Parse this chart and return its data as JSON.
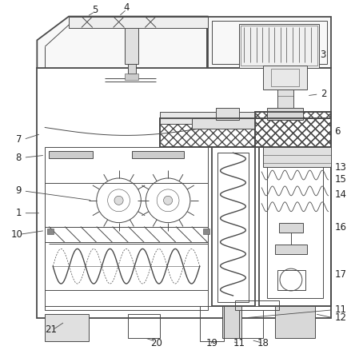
{
  "bg_color": "#ffffff",
  "line_color": "#4a4a4a",
  "label_color": "#222222",
  "lw_main": 1.3,
  "lw_thin": 0.7,
  "lw_hair": 0.4,
  "fig_width": 4.44,
  "fig_height": 4.38,
  "dpi": 100
}
